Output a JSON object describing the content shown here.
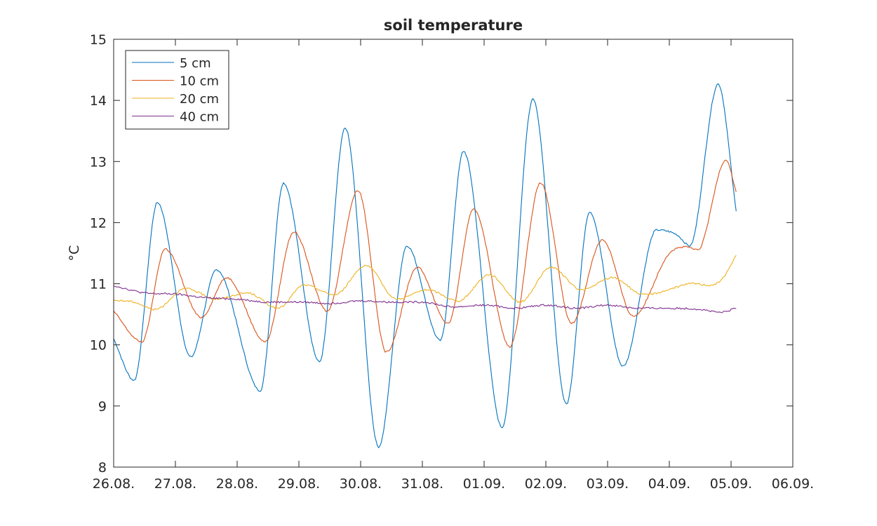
{
  "chart_data": {
    "type": "line",
    "title": "soil temperature",
    "xlabel": "",
    "ylabel": "°C",
    "xlim": [
      "2023-08-26",
      "2023-09-06"
    ],
    "ylim": [
      8,
      15
    ],
    "x_tick_labels": [
      "26.08.",
      "27.08.",
      "28.08.",
      "29.08.",
      "30.08.",
      "31.08.",
      "01.09.",
      "02.09.",
      "03.09.",
      "04.09.",
      "05.09.",
      "06.09."
    ],
    "y_ticks": [
      8,
      9,
      10,
      11,
      12,
      13,
      14,
      15
    ],
    "grid": false,
    "legend_position": "top-left",
    "series": [
      {
        "name": "5 cm",
        "color": "#0072bd",
        "points": [
          [
            "2023-08-26T00:00",
            10.1
          ],
          [
            "2023-08-26T08:00",
            9.42
          ],
          [
            "2023-08-26T17:00",
            12.33
          ],
          [
            "2023-08-27T06:00",
            9.8
          ],
          [
            "2023-08-27T16:00",
            11.23
          ],
          [
            "2023-08-28T09:00",
            9.25
          ],
          [
            "2023-08-28T18:00",
            12.65
          ],
          [
            "2023-08-29T08:00",
            9.72
          ],
          [
            "2023-08-29T18:00",
            13.55
          ],
          [
            "2023-08-30T07:00",
            8.33
          ],
          [
            "2023-08-30T18:00",
            11.62
          ],
          [
            "2023-08-31T07:00",
            10.07
          ],
          [
            "2023-08-31T16:00",
            13.17
          ],
          [
            "2023-09-01T07:00",
            8.65
          ],
          [
            "2023-09-01T19:00",
            14.03
          ],
          [
            "2023-09-02T08:00",
            9.03
          ],
          [
            "2023-09-02T17:00",
            12.18
          ],
          [
            "2023-09-03T06:00",
            9.65
          ],
          [
            "2023-09-03T19:00",
            11.88
          ],
          [
            "2023-09-04T03:00",
            11.8
          ],
          [
            "2023-09-04T08:00",
            11.62
          ],
          [
            "2023-09-04T19:00",
            14.27
          ],
          [
            "2023-09-05T02:00",
            12.18
          ]
        ]
      },
      {
        "name": "10 cm",
        "color": "#d95319",
        "points": [
          [
            "2023-08-26T00:00",
            10.55
          ],
          [
            "2023-08-26T11:00",
            10.05
          ],
          [
            "2023-08-26T20:00",
            11.57
          ],
          [
            "2023-08-27T10:00",
            10.45
          ],
          [
            "2023-08-27T20:00",
            11.1
          ],
          [
            "2023-08-28T11:00",
            10.05
          ],
          [
            "2023-08-28T22:00",
            11.85
          ],
          [
            "2023-08-29T11:00",
            10.55
          ],
          [
            "2023-08-29T23:00",
            12.53
          ],
          [
            "2023-08-30T10:00",
            9.88
          ],
          [
            "2023-08-30T22:00",
            11.27
          ],
          [
            "2023-08-31T10:00",
            10.35
          ],
          [
            "2023-08-31T20:00",
            12.22
          ],
          [
            "2023-09-01T10:00",
            9.97
          ],
          [
            "2023-09-01T22:00",
            12.65
          ],
          [
            "2023-09-02T10:00",
            10.35
          ],
          [
            "2023-09-02T22:00",
            11.72
          ],
          [
            "2023-09-03T10:00",
            10.47
          ],
          [
            "2023-09-04T00:00",
            11.5
          ],
          [
            "2023-09-04T07:00",
            11.6
          ],
          [
            "2023-09-04T11:00",
            11.55
          ],
          [
            "2023-09-04T22:00",
            13.03
          ],
          [
            "2023-09-05T02:00",
            12.5
          ]
        ]
      },
      {
        "name": "20 cm",
        "color": "#edb120",
        "points": [
          [
            "2023-08-26T00:00",
            10.73
          ],
          [
            "2023-08-26T08:00",
            10.7
          ],
          [
            "2023-08-26T16:00",
            10.58
          ],
          [
            "2023-08-27T04:00",
            10.92
          ],
          [
            "2023-08-27T16:00",
            10.75
          ],
          [
            "2023-08-28T04:00",
            10.85
          ],
          [
            "2023-08-28T16:00",
            10.6
          ],
          [
            "2023-08-29T02:00",
            10.98
          ],
          [
            "2023-08-29T14:00",
            10.82
          ],
          [
            "2023-08-30T02:00",
            11.3
          ],
          [
            "2023-08-30T14:00",
            10.75
          ],
          [
            "2023-08-31T02:00",
            10.9
          ],
          [
            "2023-08-31T14:00",
            10.72
          ],
          [
            "2023-09-01T02:00",
            11.15
          ],
          [
            "2023-09-01T14:00",
            10.7
          ],
          [
            "2023-09-02T02:00",
            11.27
          ],
          [
            "2023-09-02T14:00",
            10.9
          ],
          [
            "2023-09-03T02:00",
            11.1
          ],
          [
            "2023-09-03T14:00",
            10.82
          ],
          [
            "2023-09-04T08:00",
            11.0
          ],
          [
            "2023-09-04T20:00",
            11.05
          ],
          [
            "2023-09-05T02:00",
            11.47
          ]
        ]
      },
      {
        "name": "40 cm",
        "color": "#7e2f8e",
        "points": [
          [
            "2023-08-26T00:00",
            10.97
          ],
          [
            "2023-08-26T12:00",
            10.85
          ],
          [
            "2023-08-27T00:00",
            10.83
          ],
          [
            "2023-08-27T12:00",
            10.77
          ],
          [
            "2023-08-28T00:00",
            10.75
          ],
          [
            "2023-08-28T12:00",
            10.7
          ],
          [
            "2023-08-29T00:00",
            10.7
          ],
          [
            "2023-08-29T12:00",
            10.68
          ],
          [
            "2023-08-30T00:00",
            10.72
          ],
          [
            "2023-08-30T12:00",
            10.7
          ],
          [
            "2023-08-31T00:00",
            10.7
          ],
          [
            "2023-08-31T12:00",
            10.62
          ],
          [
            "2023-09-01T00:00",
            10.65
          ],
          [
            "2023-09-01T12:00",
            10.6
          ],
          [
            "2023-09-02T00:00",
            10.65
          ],
          [
            "2023-09-02T12:00",
            10.6
          ],
          [
            "2023-09-03T00:00",
            10.65
          ],
          [
            "2023-09-03T12:00",
            10.6
          ],
          [
            "2023-09-04T00:00",
            10.6
          ],
          [
            "2023-09-04T12:00",
            10.58
          ],
          [
            "2023-09-04T20:00",
            10.53
          ],
          [
            "2023-09-05T02:00",
            10.6
          ]
        ]
      }
    ]
  }
}
